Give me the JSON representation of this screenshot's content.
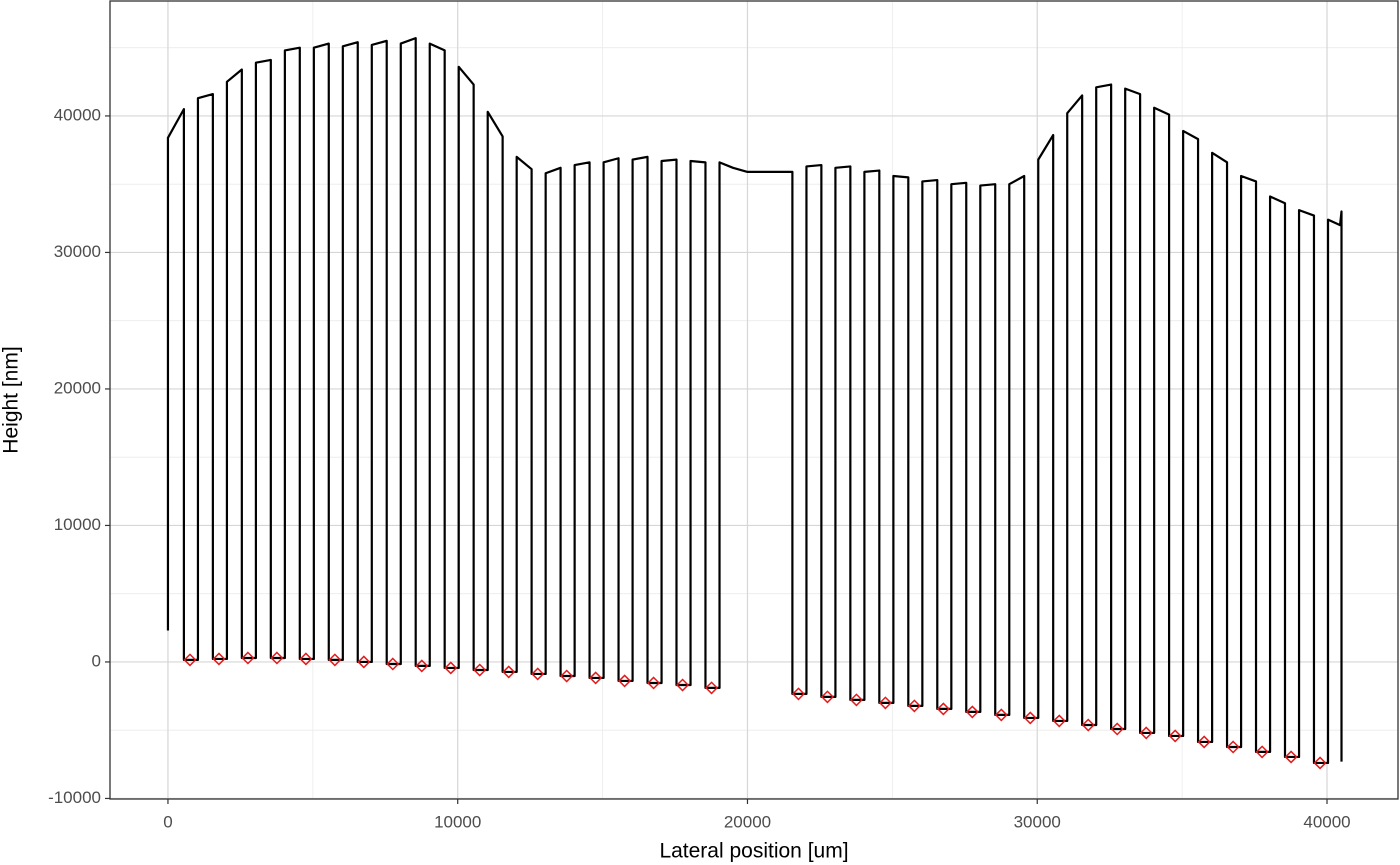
{
  "chart_data": {
    "type": "line",
    "xlabel": "Lateral position [um]",
    "ylabel": "Height [nm]",
    "xlim": [
      -2000,
      42450
    ],
    "ylim": [
      -10040,
      48420
    ],
    "xticks": [
      0,
      10000,
      20000,
      30000,
      40000
    ],
    "yticks": [
      -10000,
      0,
      10000,
      20000,
      30000,
      40000
    ],
    "xminor": [
      5000,
      15000,
      25000,
      35000
    ],
    "yminor": [
      -5000,
      5000,
      15000,
      25000,
      35000,
      45000
    ],
    "grid": true,
    "series": [
      {
        "color": "#000000",
        "x": [
          0,
          0,
          550,
          550,
          1035,
          1035,
          1550,
          1550,
          2035,
          2035,
          2550,
          2550,
          3035,
          3035,
          3550,
          3550,
          4035,
          4035,
          4550,
          4550,
          5035,
          5035,
          5550,
          5550,
          6035,
          6035,
          6550,
          6550,
          7035,
          7035,
          7550,
          7550,
          8035,
          8035,
          8550,
          8550,
          9035,
          9035,
          9550,
          9550,
          10035,
          10035,
          10550,
          10550,
          11035,
          11035,
          11550,
          11550,
          12035,
          12035,
          12550,
          12550,
          13035,
          13035,
          13550,
          13550,
          14035,
          14035,
          14550,
          14550,
          15035,
          15035,
          15550,
          15550,
          16035,
          16035,
          16550,
          16550,
          17035,
          17035,
          17550,
          17550,
          18035,
          18035,
          18550,
          18550,
          19035,
          19035,
          19500,
          20000,
          21550,
          21550,
          22035,
          22035,
          22550,
          22550,
          23035,
          23035,
          23550,
          23550,
          24035,
          24035,
          24550,
          24550,
          25035,
          25035,
          25550,
          25550,
          26035,
          26035,
          26550,
          26550,
          27035,
          27035,
          27550,
          27550,
          28035,
          28035,
          28550,
          28550,
          29035,
          29035,
          29550,
          29550,
          30035,
          30035,
          30550,
          30550,
          31035,
          31035,
          31550,
          31550,
          32035,
          32035,
          32550,
          32550,
          33035,
          33035,
          33550,
          33550,
          34035,
          34035,
          34550,
          34550,
          35035,
          35035,
          35550,
          35550,
          36035,
          36035,
          36550,
          36550,
          37035,
          37035,
          37550,
          37550,
          38035,
          38035,
          38550,
          38550,
          39035,
          39035,
          39550,
          39550,
          40035,
          40035,
          40450,
          40500,
          40500
        ],
        "y": [
          2300,
          38400,
          40500,
          150,
          150,
          41300,
          41600,
          220,
          220,
          42500,
          43400,
          290,
          290,
          43900,
          44100,
          290,
          290,
          44800,
          45000,
          220,
          220,
          45000,
          45300,
          150,
          150,
          45100,
          45400,
          0,
          0,
          45200,
          45500,
          -150,
          -150,
          45300,
          45700,
          -290,
          -290,
          45300,
          44800,
          -440,
          -440,
          43600,
          42300,
          -590,
          -590,
          40300,
          38500,
          -730,
          -730,
          37000,
          36100,
          -880,
          -880,
          35800,
          36200,
          -1030,
          -1030,
          36400,
          36600,
          -1170,
          -1170,
          36600,
          36900,
          -1390,
          -1390,
          36800,
          37000,
          -1540,
          -1540,
          36700,
          36800,
          -1690,
          -1690,
          36700,
          36600,
          -1900,
          -1900,
          36600,
          36200,
          35900,
          35900,
          -2340,
          -2340,
          36300,
          36400,
          -2560,
          -2560,
          36200,
          36300,
          -2780,
          -2780,
          35900,
          36000,
          -3000,
          -3000,
          35600,
          35500,
          -3220,
          -3220,
          35200,
          35300,
          -3440,
          -3440,
          35000,
          35100,
          -3660,
          -3660,
          34900,
          35000,
          -3880,
          -3880,
          35000,
          35600,
          -4100,
          -4100,
          36800,
          38600,
          -4320,
          -4320,
          40200,
          41500,
          -4620,
          -4620,
          42100,
          42300,
          -4910,
          -4910,
          42000,
          41600,
          -5200,
          -5200,
          40600,
          40100,
          -5420,
          -5420,
          38900,
          38300,
          -5860,
          -5860,
          37300,
          36600,
          -6230,
          -6230,
          35600,
          35200,
          -6590,
          -6590,
          34100,
          33600,
          -6960,
          -6960,
          33100,
          32700,
          -7400,
          -7400,
          32400,
          32000,
          33000,
          -7300
        ]
      }
    ],
    "points": {
      "color": "#e31a1c",
      "x": [
        760,
        1760,
        2760,
        3760,
        4760,
        5760,
        6760,
        7760,
        8760,
        9760,
        10760,
        11760,
        12760,
        13760,
        14760,
        15760,
        16760,
        17760,
        18760,
        21760,
        22760,
        23760,
        24760,
        25760,
        26760,
        27760,
        28760,
        29760,
        30760,
        31760,
        32760,
        33760,
        34760,
        35760,
        36760,
        37760,
        38760,
        39760
      ],
      "y": [
        150,
        220,
        290,
        290,
        220,
        150,
        0,
        -150,
        -290,
        -440,
        -590,
        -730,
        -880,
        -1030,
        -1170,
        -1390,
        -1540,
        -1690,
        -1900,
        -2340,
        -2560,
        -2780,
        -3000,
        -3220,
        -3440,
        -3660,
        -3880,
        -4100,
        -4320,
        -4620,
        -4910,
        -5200,
        -5420,
        -5860,
        -6230,
        -6590,
        -6960,
        -7400
      ]
    }
  }
}
